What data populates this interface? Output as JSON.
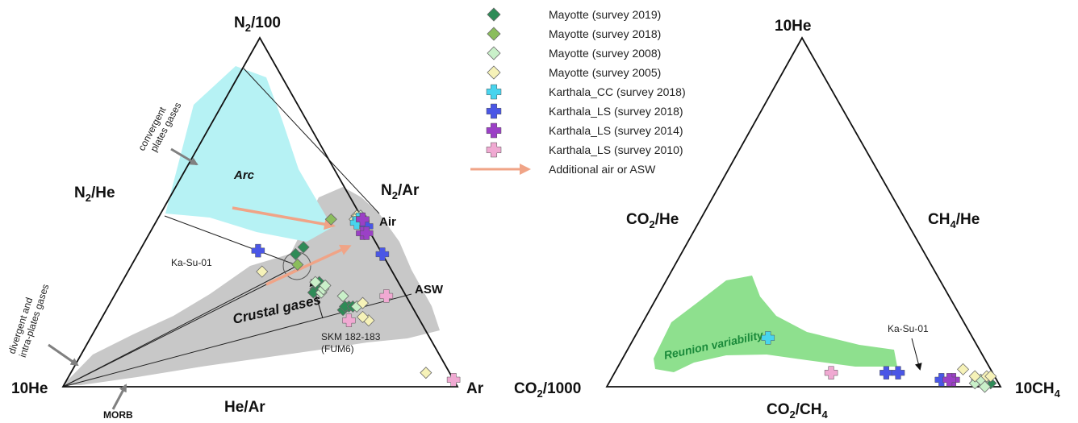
{
  "colors": {
    "mayotte_2019": "#2e8b57",
    "mayotte_2018": "#8bbd5c",
    "mayotte_2008": "#c9f0c9",
    "mayotte_2005": "#f6f2b8",
    "karthala_cc_2018": "#48d4ee",
    "karthala_ls_2018": "#4a56e6",
    "karthala_ls_2014": "#9b40c6",
    "karthala_ls_2010": "#f0a9d2",
    "arrow": "#f0a487",
    "arc_fill": "#b6f2f4",
    "crustal_fill": "#c8c8c8",
    "reunion_fill": "#8ee08e",
    "reunion_text": "#1a8a3a"
  },
  "legend": {
    "items": [
      {
        "label": "Mayotte (survey 2019)",
        "marker": "diamond",
        "color": "#2e8b57"
      },
      {
        "label": "Mayotte (survey 2018)",
        "marker": "diamond",
        "color": "#8bbd5c"
      },
      {
        "label": "Mayotte (survey 2008)",
        "marker": "diamond",
        "color": "#c9f0c9"
      },
      {
        "label": "Mayotte (survey 2005)",
        "marker": "diamond",
        "color": "#f6f2b8"
      },
      {
        "label": "Karthala_CC (survey 2018)",
        "marker": "cross",
        "color": "#48d4ee"
      },
      {
        "label": "Karthala_LS (survey 2018)",
        "marker": "cross",
        "color": "#4a56e6"
      },
      {
        "label": "Karthala_LS (survey 2014)",
        "marker": "cross",
        "color": "#9b40c6"
      },
      {
        "label": "Karthala_LS (survey 2010)",
        "marker": "cross",
        "color": "#f0a9d2"
      },
      {
        "label": "Additional air or ASW",
        "marker": "arrow",
        "color": "#f0a487"
      }
    ]
  },
  "chart_data": [
    {
      "type": "scatter",
      "kind": "ternary",
      "vertices": {
        "top": {
          "main": "N",
          "sub": "2",
          "rest": "/100"
        },
        "left": {
          "main": "10He",
          "sub": "",
          "rest": ""
        },
        "right": {
          "main": "Ar",
          "sub": "",
          "rest": ""
        }
      },
      "edge_labels": {
        "left": {
          "main": "N",
          "sub": "2",
          "rest": "/He"
        },
        "right": {
          "main": "N",
          "sub": "2",
          "rest": "/Ar"
        },
        "bottom": {
          "main": "He/Ar",
          "sub": "",
          "rest": ""
        }
      },
      "reference_points": {
        "air": "Air",
        "asw": "ASW"
      },
      "regions": {
        "arc": "Arc",
        "crustal": "Crustal gases"
      },
      "annotations": {
        "convergent": [
          "convergent",
          "plates gases"
        ],
        "divergent": [
          "divergent and",
          "intra-plates gases"
        ],
        "morb": "MORB",
        "ka_su": "Ka-Su-01",
        "skm": [
          "SKM 182-183",
          "(FUM6)"
        ]
      },
      "series": [
        {
          "name": "Mayotte (survey 2019)",
          "marker": "diamond",
          "color": "#2e8b57",
          "points": [
            [
              0.22,
              0.18,
              0.6
            ],
            [
              0.23,
              0.16,
              0.61
            ],
            [
              0.23,
              0.17,
              0.6
            ],
            [
              0.23,
              0.15,
              0.62
            ],
            [
              0.3,
              0.2,
              0.5
            ],
            [
              0.28,
              0.22,
              0.5
            ],
            [
              0.27,
              0.23,
              0.5
            ],
            [
              0.38,
              0.22,
              0.4
            ],
            [
              0.4,
              0.19,
              0.41
            ]
          ]
        },
        {
          "name": "Mayotte (survey 2018)",
          "marker": "diamond",
          "color": "#8bbd5c",
          "points": [
            [
              0.35,
              0.23,
              0.42
            ],
            [
              0.48,
              0.08,
              0.44
            ]
          ]
        },
        {
          "name": "Mayotte (survey 2008)",
          "marker": "diamond",
          "color": "#c9f0c9",
          "points": [
            [
              0.23,
              0.14,
              0.63
            ],
            [
              0.26,
              0.16,
              0.58
            ],
            [
              0.27,
              0.21,
              0.52
            ],
            [
              0.28,
              0.2,
              0.52
            ],
            [
              0.29,
              0.19,
              0.52
            ],
            [
              0.3,
              0.21,
              0.49
            ],
            [
              0.49,
              0.01,
              0.5
            ],
            [
              0.49,
              0.0,
              0.51
            ],
            [
              0.49,
              0.0,
              0.51
            ]
          ]
        },
        {
          "name": "Mayotte (survey 2005)",
          "marker": "diamond",
          "color": "#f6f2b8",
          "points": [
            [
              0.04,
              0.06,
              0.9
            ],
            [
              0.19,
              0.13,
              0.68
            ],
            [
              0.2,
              0.14,
              0.66
            ],
            [
              0.24,
              0.12,
              0.64
            ],
            [
              0.33,
              0.33,
              0.34
            ],
            [
              0.49,
              0.01,
              0.5
            ],
            [
              0.48,
              0.02,
              0.5
            ]
          ]
        },
        {
          "name": "Karthala_CC (survey 2018)",
          "marker": "cross",
          "color": "#48d4ee",
          "points": [
            [
              0.48,
              0.01,
              0.51
            ],
            [
              0.47,
              0.02,
              0.51
            ]
          ]
        },
        {
          "name": "Karthala_LS (survey 2018)",
          "marker": "cross",
          "color": "#4a56e6",
          "points": [
            [
              0.39,
              0.31,
              0.3
            ],
            [
              0.48,
              0.0,
              0.52
            ],
            [
              0.46,
              0.0,
              0.54
            ],
            [
              0.38,
              0.0,
              0.62
            ]
          ]
        },
        {
          "name": "Karthala_LS (survey 2014)",
          "marker": "cross",
          "color": "#9b40c6",
          "points": [
            [
              0.48,
              0.0,
              0.52
            ],
            [
              0.44,
              0.02,
              0.54
            ],
            [
              0.44,
              0.01,
              0.55
            ]
          ]
        },
        {
          "name": "Karthala_LS (survey 2010)",
          "marker": "cross",
          "color": "#f0a9d2",
          "points": [
            [
              0.26,
              0.05,
              0.69
            ],
            [
              0.19,
              0.18,
              0.63
            ],
            [
              0.02,
              0.0,
              0.98
            ]
          ]
        }
      ]
    },
    {
      "type": "scatter",
      "kind": "ternary",
      "vertices": {
        "top": {
          "main": "10He",
          "sub": "",
          "rest": ""
        },
        "left": {
          "main": "CO",
          "sub": "2",
          "rest": "/1000"
        },
        "right": {
          "main": "10CH",
          "sub": "4",
          "rest": ""
        }
      },
      "edge_labels": {
        "left": {
          "main": "CO",
          "sub": "2",
          "rest": "/He"
        },
        "right": {
          "main": "CH",
          "sub": "4",
          "rest": "/He"
        },
        "bottom": {
          "main": "CO",
          "sub": "2",
          "rest": "/CH"
        },
        "bottom_sub2": "4"
      },
      "regions": {
        "reunion": "Reunion variability"
      },
      "annotations": {
        "ka_su": "Ka-Su-01"
      },
      "series": [
        {
          "name": "Mayotte (survey 2019)",
          "marker": "diamond",
          "color": "#2e8b57",
          "points": [
            [
              0.01,
              0.03,
              0.96
            ],
            [
              0.01,
              0.02,
              0.97
            ]
          ]
        },
        {
          "name": "Mayotte (survey 2008)",
          "marker": "diamond",
          "color": "#c9f0c9",
          "points": [
            [
              0.01,
              0.04,
              0.95
            ],
            [
              0.02,
              0.03,
              0.95
            ],
            [
              0.02,
              0.05,
              0.93
            ],
            [
              0.01,
              0.06,
              0.93
            ],
            [
              0.02,
              0.04,
              0.94
            ],
            [
              0.0,
              0.04,
              0.96
            ]
          ]
        },
        {
          "name": "Mayotte (survey 2005)",
          "marker": "diamond",
          "color": "#f6f2b8",
          "points": [
            [
              0.05,
              0.07,
              0.88
            ],
            [
              0.03,
              0.02,
              0.95
            ],
            [
              0.03,
              0.01,
              0.96
            ],
            [
              0.03,
              0.05,
              0.92
            ]
          ]
        },
        {
          "name": "Karthala_CC (survey 2018)",
          "marker": "cross",
          "color": "#48d4ee",
          "points": [
            [
              0.14,
              0.52,
              0.34
            ]
          ]
        },
        {
          "name": "Karthala_LS (survey 2018)",
          "marker": "cross",
          "color": "#4a56e6",
          "points": [
            [
              0.04,
              0.27,
              0.69
            ],
            [
              0.04,
              0.24,
              0.72
            ],
            [
              0.02,
              0.14,
              0.84
            ]
          ]
        },
        {
          "name": "Karthala_LS (survey 2014)",
          "marker": "cross",
          "color": "#9b40c6",
          "points": [
            [
              0.02,
              0.11,
              0.87
            ],
            [
              0.02,
              0.12,
              0.86
            ]
          ]
        },
        {
          "name": "Karthala_LS (survey 2010)",
          "marker": "cross",
          "color": "#f0a9d2",
          "points": [
            [
              0.04,
              0.41,
              0.55
            ]
          ]
        }
      ]
    }
  ]
}
